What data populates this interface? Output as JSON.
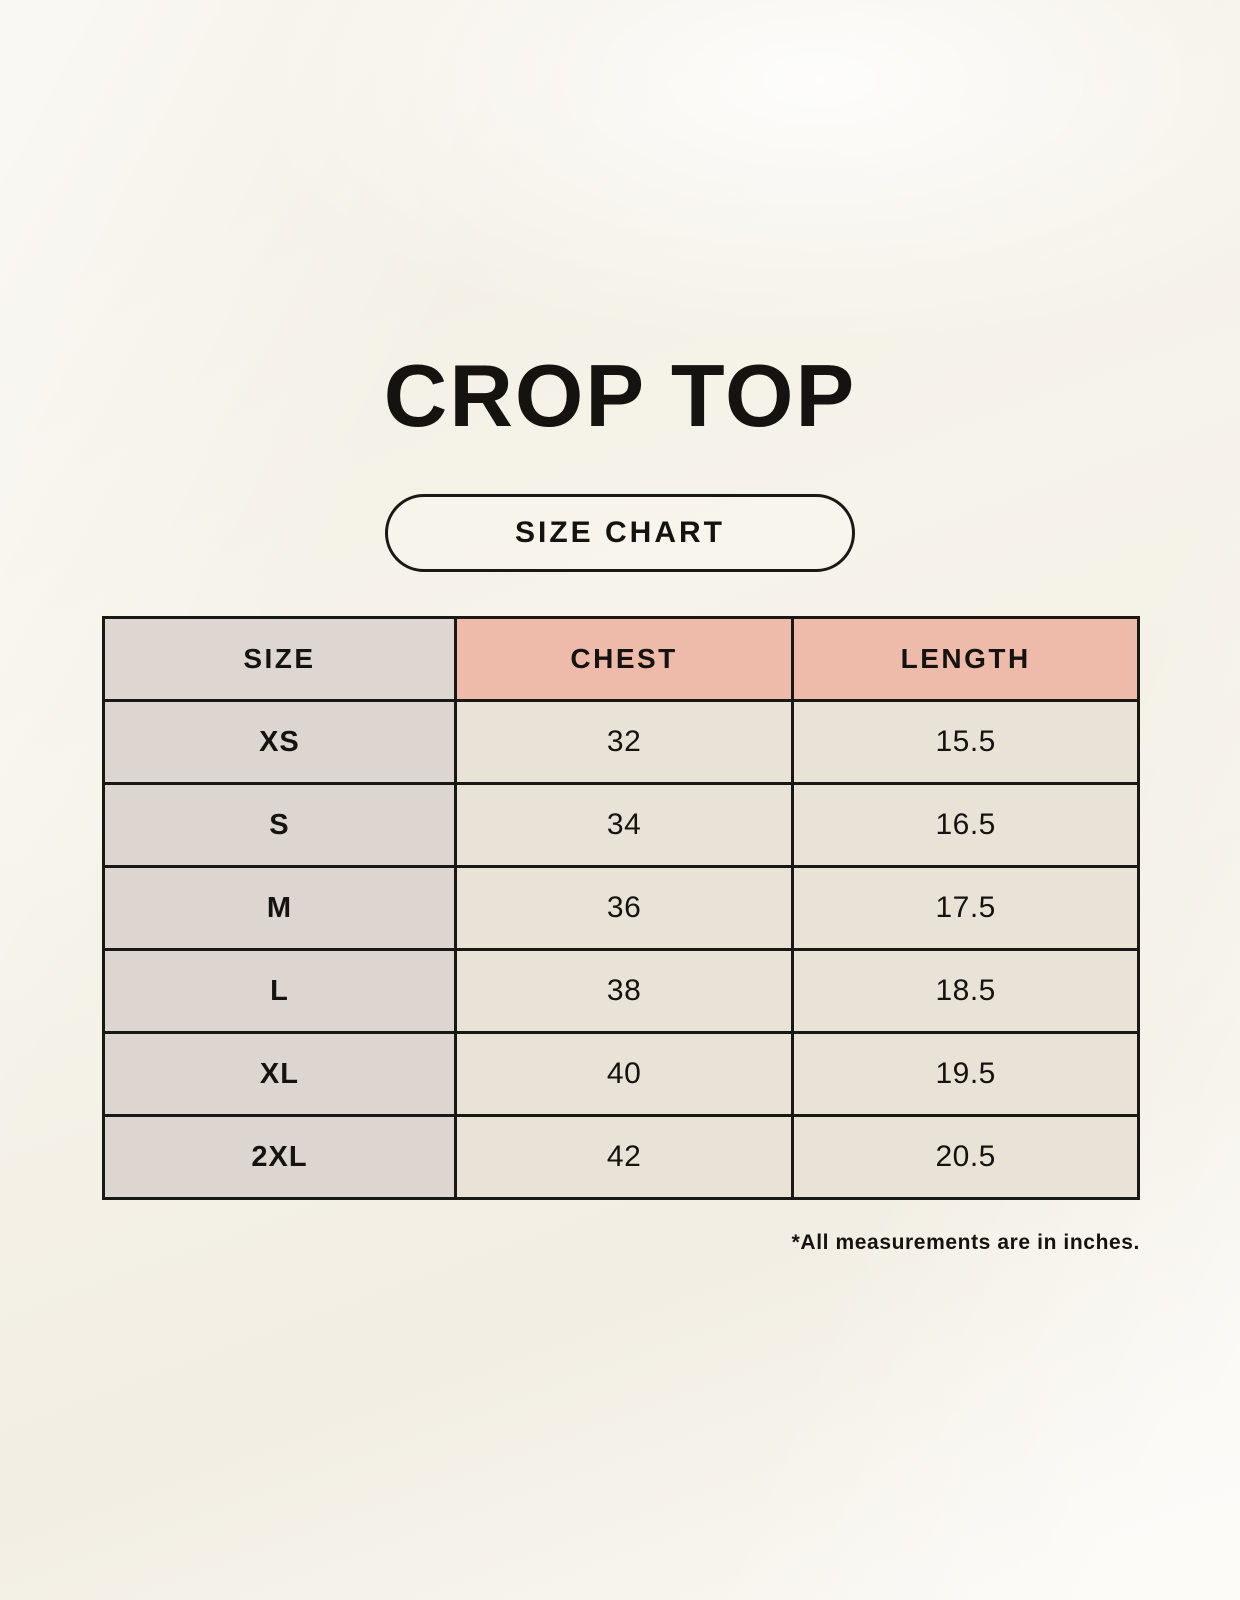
{
  "chart_data": {
    "type": "table",
    "title": "CROP TOP",
    "subtitle": "SIZE CHART",
    "columns": [
      "SIZE",
      "CHEST",
      "LENGTH"
    ],
    "rows": [
      [
        "XS",
        "32",
        "15.5"
      ],
      [
        "S",
        "34",
        "16.5"
      ],
      [
        "M",
        "36",
        "17.5"
      ],
      [
        "L",
        "38",
        "18.5"
      ],
      [
        "XL",
        "40",
        "19.5"
      ],
      [
        "2XL",
        "42",
        "20.5"
      ]
    ],
    "note": "*All measurements are in inches."
  },
  "colors": {
    "background_cream": "#F6F3EA",
    "header_accent_pink": "#EEBAAA",
    "size_column_gray": "#DCD5D0",
    "cell_cream": "#E9E2D7",
    "border_black": "#1A1815",
    "text_black": "#15130F"
  }
}
